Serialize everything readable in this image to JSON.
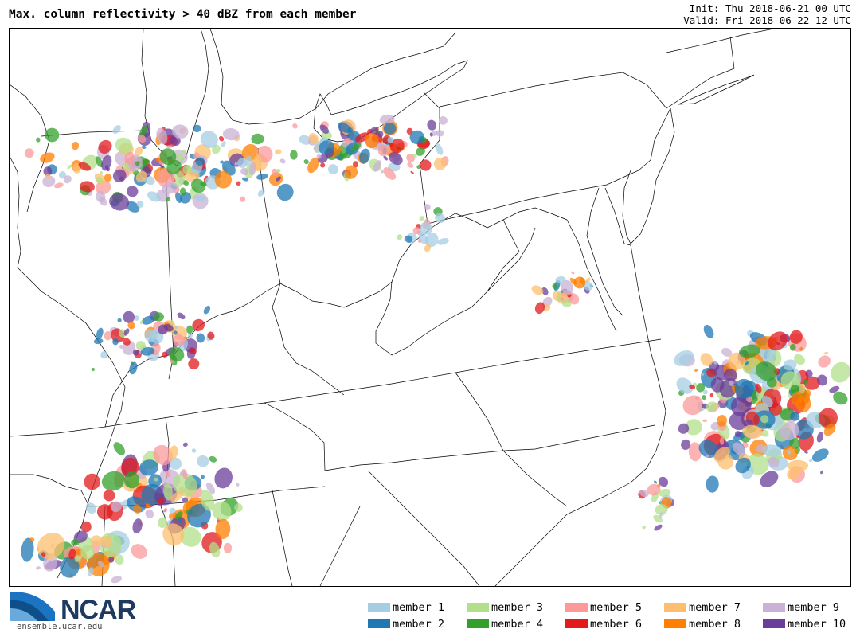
{
  "header": {
    "title": "Max. column reflectivity > 40 dBZ from each member",
    "init": "Init: Thu 2018-06-21 00 UTC",
    "valid": "Valid: Fri 2018-06-22 12 UTC"
  },
  "logo": {
    "name": "NCAR",
    "url": "ensemble.ucar.edu"
  },
  "legend": [
    {
      "label": "member 1",
      "color": "#a6cee3"
    },
    {
      "label": "member 2",
      "color": "#1f78b4"
    },
    {
      "label": "member 3",
      "color": "#b2df8a"
    },
    {
      "label": "member 4",
      "color": "#33a02c"
    },
    {
      "label": "member 5",
      "color": "#fb9a99"
    },
    {
      "label": "member 6",
      "color": "#e31a1c"
    },
    {
      "label": "member 7",
      "color": "#fdbf6f"
    },
    {
      "label": "member 8",
      "color": "#ff7f00"
    },
    {
      "label": "member 9",
      "color": "#cab2d6"
    },
    {
      "label": "member 10",
      "color": "#6a3d9a"
    }
  ]
}
